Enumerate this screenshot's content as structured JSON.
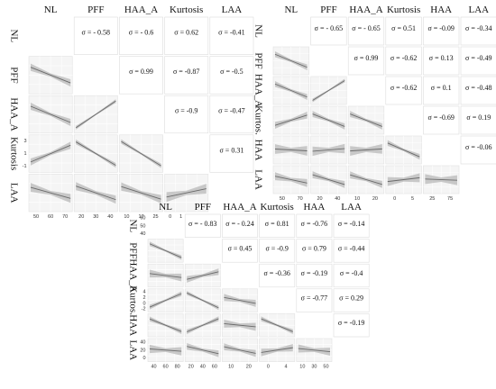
{
  "chart_data": [
    {
      "type": "scatter",
      "variables": [
        "NL",
        "PFF",
        "HAA_A",
        "Kurtosis",
        "LAA"
      ],
      "row_labels": [
        "NL",
        "PFF",
        "HAA_A",
        "Kurtosis",
        "LAA"
      ],
      "sigma_prefix": "σ = ",
      "correlations": [
        {
          "i": 0,
          "j": 1,
          "text": "- 0.58"
        },
        {
          "i": 0,
          "j": 2,
          "text": "- 0.6"
        },
        {
          "i": 0,
          "j": 3,
          "text": "0.62"
        },
        {
          "i": 0,
          "j": 4,
          "text": "-0.41"
        },
        {
          "i": 1,
          "j": 2,
          "text": "0.99"
        },
        {
          "i": 1,
          "j": 3,
          "text": "-0.87"
        },
        {
          "i": 1,
          "j": 4,
          "text": "-0.5"
        },
        {
          "i": 2,
          "j": 3,
          "text": "-0.9"
        },
        {
          "i": 2,
          "j": 4,
          "text": "-0.47"
        },
        {
          "i": 3,
          "j": 4,
          "text": "0.31"
        }
      ],
      "row_ticks": [
        [],
        [],
        [],
        [
          "3",
          "1",
          "-1"
        ],
        []
      ],
      "col_ticks": [
        [
          "50",
          "60",
          "70"
        ],
        [
          "20",
          "30",
          "40"
        ],
        [
          "10",
          "17",
          "25"
        ],
        [
          "0",
          "1",
          "2",
          "3"
        ],
        []
      ]
    },
    {
      "type": "scatter",
      "variables": [
        "NL",
        "PFF",
        "HAA_A",
        "Kurtosis",
        "HAA",
        "LAA"
      ],
      "row_labels": [
        "NL",
        "PFF",
        "HAA_A",
        "Kurtos.",
        "HAA",
        "LAA"
      ],
      "sigma_prefix": "σ = ",
      "correlations": [
        {
          "i": 0,
          "j": 1,
          "text": "- 0.65"
        },
        {
          "i": 0,
          "j": 2,
          "text": "- 0.65"
        },
        {
          "i": 0,
          "j": 3,
          "text": "0.51"
        },
        {
          "i": 0,
          "j": 4,
          "text": "-0.09"
        },
        {
          "i": 0,
          "j": 5,
          "text": "-0.34"
        },
        {
          "i": 1,
          "j": 2,
          "text": "0.99"
        },
        {
          "i": 1,
          "j": 3,
          "text": "-0.62"
        },
        {
          "i": 1,
          "j": 4,
          "text": "0.13"
        },
        {
          "i": 1,
          "j": 5,
          "text": "-0.49"
        },
        {
          "i": 2,
          "j": 3,
          "text": "-0.62"
        },
        {
          "i": 2,
          "j": 4,
          "text": "0.1"
        },
        {
          "i": 2,
          "j": 5,
          "text": "-0.48"
        },
        {
          "i": 3,
          "j": 4,
          "text": "-0.69"
        },
        {
          "i": 3,
          "j": 5,
          "text": "0.19"
        },
        {
          "i": 4,
          "j": 5,
          "text": "-0.06"
        }
      ],
      "row_ticks": [
        [],
        [],
        [],
        [],
        [],
        []
      ],
      "col_ticks": [
        [
          "50",
          "70"
        ],
        [
          "20",
          "40"
        ],
        [
          "10",
          "20"
        ],
        [
          "0",
          "5"
        ],
        [
          "25",
          "75"
        ],
        []
      ]
    },
    {
      "type": "scatter",
      "variables": [
        "NL",
        "PFF",
        "HAA_A",
        "Kurtosis",
        "HAA",
        "LAA"
      ],
      "row_labels": [
        "NL",
        "PFF",
        "HAA_A",
        "Kurtos.",
        "HAA",
        "LAA"
      ],
      "sigma_prefix": "σ = ",
      "correlations": [
        {
          "i": 0,
          "j": 1,
          "text": "- 0.83"
        },
        {
          "i": 0,
          "j": 2,
          "text": "- 0.24"
        },
        {
          "i": 0,
          "j": 3,
          "text": "0.81"
        },
        {
          "i": 0,
          "j": 4,
          "text": "-0.76"
        },
        {
          "i": 0,
          "j": 5,
          "text": "-0.14"
        },
        {
          "i": 1,
          "j": 2,
          "text": "0.45"
        },
        {
          "i": 1,
          "j": 3,
          "text": "-0.9"
        },
        {
          "i": 1,
          "j": 4,
          "text": "0.79"
        },
        {
          "i": 1,
          "j": 5,
          "text": "-0.44"
        },
        {
          "i": 2,
          "j": 3,
          "text": "-0.36"
        },
        {
          "i": 2,
          "j": 4,
          "text": "-0.19"
        },
        {
          "i": 2,
          "j": 5,
          "text": "-0.4"
        },
        {
          "i": 3,
          "j": 4,
          "text": "-0.77"
        },
        {
          "i": 3,
          "j": 5,
          "text": "0.29"
        },
        {
          "i": 4,
          "j": 5,
          "text": "-0.19"
        }
      ],
      "row_ticks": [
        [
          "60",
          "50",
          "40"
        ],
        [],
        [],
        [
          "4",
          "2",
          "0",
          "-2"
        ],
        [],
        [
          "40",
          "20",
          "0"
        ]
      ],
      "col_ticks": [
        [
          "40",
          "60",
          "80"
        ],
        [
          "20",
          "40",
          "60"
        ],
        [
          "10",
          "20"
        ],
        [
          "0",
          "4"
        ],
        [
          "10",
          "30",
          "50"
        ],
        []
      ]
    }
  ]
}
